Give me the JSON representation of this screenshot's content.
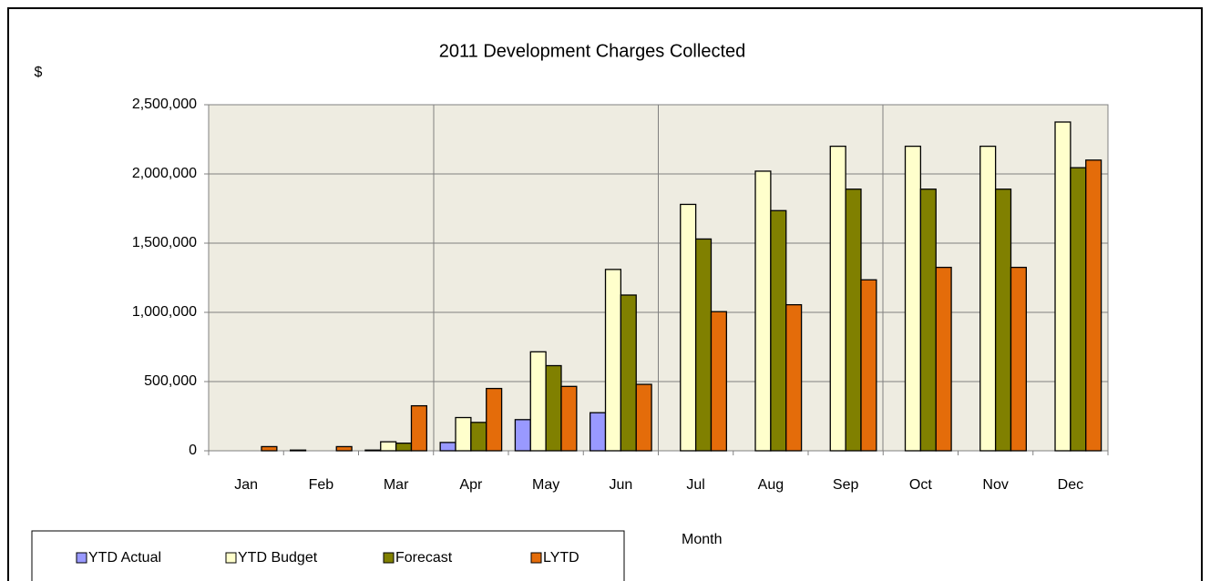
{
  "chart_data": {
    "type": "bar",
    "title": "2011 Development Charges Collected",
    "y_label": "$",
    "x_label": "Month",
    "categories": [
      "Jan",
      "Feb",
      "Mar",
      "Apr",
      "May",
      "Jun",
      "Jul",
      "Aug",
      "Sep",
      "Oct",
      "Nov",
      "Dec"
    ],
    "series": [
      {
        "name": "YTD Actual",
        "color": "#9999ff",
        "values": [
          0,
          5000,
          5000,
          60000,
          225000,
          275000,
          null,
          null,
          null,
          null,
          null,
          null
        ]
      },
      {
        "name": "YTD Budget",
        "color": "#ffffcc",
        "values": [
          0,
          0,
          65000,
          240000,
          715000,
          1310000,
          1780000,
          2020000,
          2200000,
          2200000,
          2200000,
          2375000
        ]
      },
      {
        "name": "Forecast",
        "color": "#808000",
        "values": [
          0,
          0,
          55000,
          205000,
          615000,
          1125000,
          1530000,
          1735000,
          1890000,
          1890000,
          1890000,
          2045000
        ]
      },
      {
        "name": "LYTD",
        "color": "#e46c0a",
        "values": [
          30000,
          30000,
          325000,
          450000,
          465000,
          480000,
          1005000,
          1055000,
          1235000,
          1325000,
          1325000,
          2100000
        ]
      }
    ],
    "ylim": [
      0,
      2500000
    ],
    "yticks": [
      0,
      {
        "value": 500000,
        "label": "500,000"
      },
      {
        "value": 1000000,
        "label": "1,000,000"
      },
      {
        "value": 1500000,
        "label": "1,500,000"
      },
      {
        "value": 2000000,
        "label": "2,000,000"
      },
      {
        "value": 2500000,
        "label": "2,500,000"
      }
    ],
    "grid": true,
    "legend": "bottom-left"
  }
}
